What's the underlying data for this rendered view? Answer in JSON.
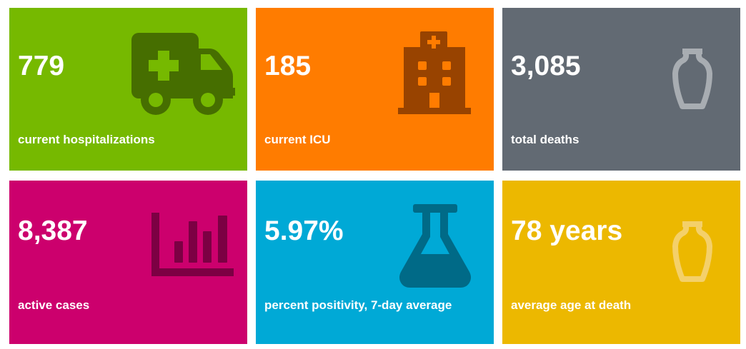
{
  "tiles": [
    {
      "value": "779",
      "label": "current hospitalizations",
      "color": "#76b900",
      "icon": "ambulance-icon"
    },
    {
      "value": "185",
      "label": "current ICU",
      "color": "#ff7c00",
      "icon": "hospital-icon"
    },
    {
      "value": "3,085",
      "label": "total deaths",
      "color": "#626a73",
      "icon": "urn-icon"
    },
    {
      "value": "8,387",
      "label": "active cases",
      "color": "#cc006d",
      "icon": "bar-chart-icon"
    },
    {
      "value": "5.97%",
      "label": "percent positivity, 7-day average",
      "color": "#00a9d6",
      "icon": "flask-icon"
    },
    {
      "value": "78 years",
      "label": "average age at death",
      "color": "#ecb800",
      "icon": "urn-icon"
    }
  ]
}
